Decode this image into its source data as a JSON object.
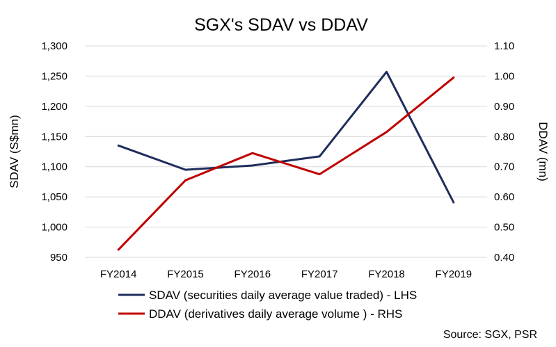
{
  "chart_data": {
    "type": "line",
    "title": "SGX's SDAV vs DDAV",
    "categories": [
      "FY2014",
      "FY2015",
      "FY2016",
      "FY2017",
      "FY2018",
      "FY2019"
    ],
    "y_left": {
      "label": "SDAV (S$mn)",
      "range": [
        950,
        1300
      ],
      "ticks": [
        "950",
        "1,000",
        "1,050",
        "1,100",
        "1,150",
        "1,200",
        "1,250",
        "1,300"
      ]
    },
    "y_right": {
      "label": "DDAV (mn)",
      "range": [
        0.4,
        1.1
      ],
      "ticks": [
        "0.40",
        "0.50",
        "0.60",
        "0.70",
        "0.80",
        "0.90",
        "1.00",
        "1.10"
      ]
    },
    "series": [
      {
        "name": "SDAV (securities daily average value traded) - LHS",
        "axis": "left",
        "color": "#1f2d5c",
        "values": [
          1135,
          1095,
          1102,
          1117,
          1257,
          1041
        ]
      },
      {
        "name": "DDAV (derivatives daily average volume ) - RHS",
        "axis": "right",
        "color": "#c00000",
        "values": [
          0.425,
          0.655,
          0.745,
          0.675,
          0.815,
          0.995
        ]
      }
    ],
    "grid": "horizontal",
    "legend_position": "bottom",
    "source": "Source: SGX, PSR"
  }
}
